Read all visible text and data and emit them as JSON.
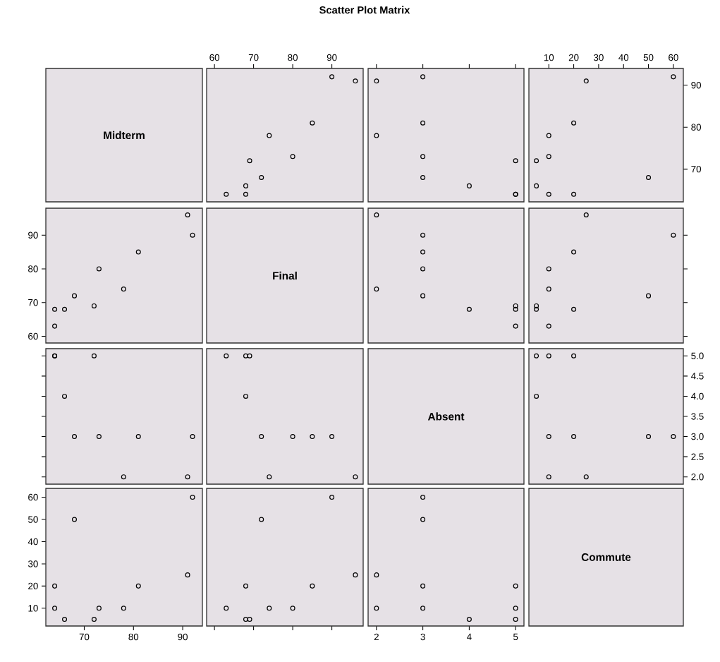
{
  "chart_data": [
    {
      "type": "other",
      "title": "Scatter Plot Matrix",
      "annotations": [
        "Midterm"
      ]
    },
    {
      "type": "scatter",
      "marker": "circle",
      "color": "#000000",
      "x": [
        68,
        68,
        72,
        69,
        80,
        74,
        85,
        96,
        90,
        63
      ],
      "values": [
        64,
        66,
        68,
        72,
        73,
        78,
        81,
        91,
        92,
        64
      ],
      "xlim": [
        58,
        98
      ],
      "ylim": [
        62.2,
        94
      ],
      "xticks": [
        60,
        70,
        80,
        90
      ],
      "tick_labels": "x"
    },
    {
      "type": "scatter",
      "marker": "circle",
      "color": "#000000",
      "x": [
        5,
        4,
        3,
        5,
        3,
        2,
        3,
        2,
        3,
        5
      ],
      "values": [
        64,
        66,
        68,
        72,
        73,
        78,
        81,
        91,
        92,
        64
      ],
      "xlim": [
        1.82,
        5.18
      ],
      "ylim": [
        62.2,
        94
      ],
      "xticks": [
        2,
        3,
        4,
        5
      ],
      "tick_labels": false
    },
    {
      "type": "scatter",
      "marker": "circle",
      "color": "#000000",
      "x": [
        20,
        5,
        50,
        5,
        10,
        10,
        20,
        25,
        60,
        10
      ],
      "values": [
        64,
        66,
        68,
        72,
        73,
        78,
        81,
        91,
        92,
        64
      ],
      "xlim": [
        2,
        64
      ],
      "ylim": [
        62.2,
        94
      ],
      "xticks": [
        10,
        20,
        30,
        40,
        50,
        60
      ],
      "yticks": [
        70,
        80,
        90
      ]
    },
    {
      "type": "scatter",
      "marker": "circle",
      "color": "#000000",
      "x": [
        64,
        66,
        68,
        72,
        73,
        78,
        81,
        91,
        92,
        64
      ],
      "values": [
        68,
        68,
        72,
        69,
        80,
        74,
        85,
        96,
        90,
        63
      ],
      "xlim": [
        62.2,
        94
      ],
      "ylim": [
        58,
        98
      ],
      "yticks": [
        60,
        70,
        80,
        90
      ],
      "tick_labels": "y"
    },
    {
      "type": "other",
      "annotations": [
        "Final"
      ]
    },
    {
      "type": "scatter",
      "marker": "circle",
      "color": "#000000",
      "x": [
        5,
        4,
        3,
        5,
        3,
        2,
        3,
        2,
        3,
        5
      ],
      "values": [
        68,
        68,
        72,
        69,
        80,
        74,
        85,
        96,
        90,
        63
      ],
      "xlim": [
        1.82,
        5.18
      ],
      "ylim": [
        58,
        98
      ],
      "tick_labels": false
    },
    {
      "type": "scatter",
      "marker": "circle",
      "color": "#000000",
      "x": [
        20,
        5,
        50,
        5,
        10,
        10,
        20,
        25,
        60,
        10
      ],
      "values": [
        68,
        68,
        72,
        69,
        80,
        74,
        85,
        96,
        90,
        63
      ],
      "xlim": [
        2,
        64
      ],
      "ylim": [
        58,
        98
      ],
      "yticks": [
        60,
        70,
        80,
        90
      ],
      "tick_labels": false
    },
    {
      "type": "scatter",
      "marker": "circle",
      "color": "#000000",
      "x": [
        64,
        66,
        68,
        72,
        73,
        78,
        81,
        91,
        92,
        64
      ],
      "values": [
        5,
        4,
        3,
        5,
        3,
        2,
        3,
        2,
        3,
        5
      ],
      "xlim": [
        62.2,
        94
      ],
      "ylim": [
        1.82,
        5.18
      ],
      "yticks": [
        2,
        2.5,
        3,
        3.5,
        4,
        4.5,
        5
      ],
      "tick_labels": false
    },
    {
      "type": "scatter",
      "marker": "circle",
      "color": "#000000",
      "x": [
        68,
        68,
        72,
        69,
        80,
        74,
        85,
        96,
        90,
        63
      ],
      "values": [
        5,
        4,
        3,
        5,
        3,
        2,
        3,
        2,
        3,
        5
      ],
      "xlim": [
        58,
        98
      ],
      "ylim": [
        1.82,
        5.18
      ],
      "tick_labels": false
    },
    {
      "type": "other",
      "annotations": [
        "Absent"
      ]
    },
    {
      "type": "scatter",
      "marker": "circle",
      "color": "#000000",
      "x": [
        20,
        5,
        50,
        5,
        10,
        10,
        20,
        25,
        60,
        10
      ],
      "values": [
        5,
        4,
        3,
        5,
        3,
        2,
        3,
        2,
        3,
        5
      ],
      "xlim": [
        2,
        64
      ],
      "ylim": [
        1.82,
        5.18
      ],
      "yticks": [
        {
          "value": 2,
          "label": "2.0"
        },
        {
          "value": 2.5,
          "label": "2.5"
        },
        {
          "value": 3,
          "label": "3.0"
        },
        {
          "value": 3.5,
          "label": "3.5"
        },
        {
          "value": 4,
          "label": "4.0"
        },
        {
          "value": 4.5,
          "label": "4.5"
        },
        {
          "value": 5,
          "label": "5.0"
        }
      ],
      "tick_labels": "y"
    },
    {
      "type": "scatter",
      "marker": "circle",
      "color": "#000000",
      "x": [
        64,
        66,
        68,
        72,
        73,
        78,
        81,
        91,
        92,
        64
      ],
      "values": [
        20,
        5,
        50,
        5,
        10,
        10,
        20,
        25,
        60,
        10
      ],
      "xlim": [
        62.2,
        94
      ],
      "ylim": [
        2,
        64
      ],
      "xticks": [
        70,
        80,
        90
      ],
      "yticks": [
        10,
        20,
        30,
        40,
        50,
        60
      ]
    },
    {
      "type": "scatter",
      "marker": "circle",
      "color": "#000000",
      "x": [
        68,
        68,
        72,
        69,
        80,
        74,
        85,
        96,
        90,
        63
      ],
      "values": [
        20,
        5,
        50,
        5,
        10,
        10,
        20,
        25,
        60,
        10
      ],
      "xlim": [
        58,
        98
      ],
      "ylim": [
        2,
        64
      ],
      "xticks": [
        60,
        70,
        80,
        90
      ],
      "tick_labels": false
    },
    {
      "type": "scatter",
      "marker": "circle",
      "color": "#000000",
      "x": [
        5,
        4,
        3,
        5,
        3,
        2,
        3,
        2,
        3,
        5
      ],
      "values": [
        20,
        5,
        50,
        5,
        10,
        10,
        20,
        25,
        60,
        10
      ],
      "xlim": [
        1.82,
        5.18
      ],
      "ylim": [
        2,
        64
      ],
      "xticks": [
        2,
        3,
        4,
        5
      ],
      "tick_labels": "x"
    },
    {
      "type": "other",
      "annotations": [
        "Commute"
      ]
    }
  ]
}
